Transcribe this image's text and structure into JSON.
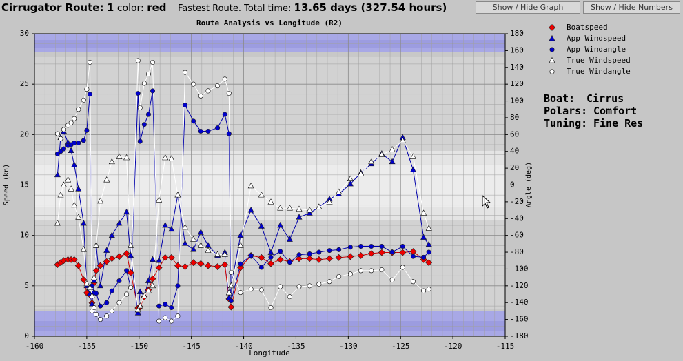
{
  "header": {
    "route_label": "Cirrugator Route:",
    "route_number": "1",
    "color_label": "color:",
    "color_value": "red",
    "time_label": "Fastest Route. Total time:",
    "time_value": "13.65 days (327.54 hours)"
  },
  "buttons": [
    "Show / Hide Graph",
    "Show / Hide Numbers"
  ],
  "info": [
    {
      "label": "Boat:",
      "value": "Cirrus"
    },
    {
      "label": "Polars:",
      "value": "Comfort"
    },
    {
      "label": "Tuning:",
      "value": "Fine Res"
    }
  ],
  "chart_data": {
    "type": "line",
    "title": "Route Analysis vs Longitude (R2)",
    "xlabel": "Longitude",
    "ylabel": "Speed (kn)",
    "y2label": "Angle (deg)",
    "xlim": [
      -160,
      -115
    ],
    "xticks": [
      -160,
      -155,
      -150,
      -145,
      -140,
      -135,
      -130,
      -125,
      -120,
      -115
    ],
    "ylim": [
      0,
      30
    ],
    "yticks": [
      0,
      5,
      10,
      15,
      20,
      25,
      30
    ],
    "y2lim": [
      -180,
      180
    ],
    "y2ticks": [
      -180,
      -160,
      -140,
      -120,
      -100,
      -80,
      -60,
      -40,
      -20,
      0,
      20,
      40,
      60,
      80,
      100,
      120,
      140,
      160,
      180
    ],
    "grid": true,
    "legend": "upper right",
    "x": [
      -157.8,
      -157.5,
      -157.2,
      -156.8,
      -156.5,
      -156.2,
      -155.8,
      -155.3,
      -155.0,
      -154.7,
      -154.5,
      -154.3,
      -154.1,
      -153.7,
      -153.1,
      -152.6,
      -151.9,
      -151.2,
      -150.8,
      -150.1,
      -149.9,
      -149.5,
      -149.1,
      -148.7,
      -148.1,
      -147.5,
      -146.9,
      -146.3,
      -145.6,
      -144.8,
      -144.1,
      -143.4,
      -142.5,
      -141.8,
      -141.4,
      -141.2,
      -140.3,
      -139.3,
      -138.3,
      -137.4,
      -136.5,
      -135.6,
      -134.7,
      -133.7,
      -132.8,
      -131.8,
      -130.9,
      -129.8,
      -128.8,
      -127.8,
      -126.8,
      -125.8,
      -124.8,
      -123.8,
      -122.8,
      -122.3
    ],
    "series": [
      {
        "name": "Boatspeed",
        "color": "#ee0000",
        "line_color": "#cc0000",
        "marker": "diamond",
        "axis": "y",
        "values": [
          7.1,
          7.3,
          7.5,
          7.6,
          7.6,
          7.6,
          7.0,
          5.6,
          4.3,
          4.1,
          3.3,
          5.3,
          6.5,
          7.0,
          7.4,
          7.7,
          7.9,
          8.2,
          6.3,
          2.8,
          2.9,
          3.9,
          4.6,
          5.7,
          6.8,
          7.8,
          7.8,
          7.0,
          6.9,
          7.3,
          7.2,
          7.0,
          6.9,
          7.1,
          3.7,
          2.9,
          6.8,
          8.0,
          7.8,
          7.2,
          7.6,
          7.4,
          7.7,
          7.7,
          7.6,
          7.7,
          7.8,
          7.9,
          8.0,
          8.2,
          8.3,
          8.3,
          8.3,
          8.4,
          7.6,
          7.3
        ]
      },
      {
        "name": "App Windspeed",
        "color": "#0000cc",
        "line_color": "#0000aa",
        "marker": "triangle",
        "axis": "y",
        "values": [
          16.0,
          19.7,
          20.3,
          19.2,
          18.4,
          17.0,
          14.6,
          11.2,
          5.0,
          4.2,
          3.2,
          5.5,
          9.0,
          5.0,
          8.5,
          10.0,
          11.2,
          12.3,
          8.0,
          2.3,
          4.4,
          4.0,
          5.5,
          7.6,
          7.5,
          11.0,
          10.6,
          14.0,
          9.2,
          8.6,
          10.3,
          9.0,
          8.0,
          8.3,
          3.8,
          5.0,
          10.0,
          12.5,
          10.9,
          8.3,
          11.0,
          9.6,
          11.8,
          12.2,
          12.8,
          13.6,
          14.1,
          15.1,
          16.2,
          17.1,
          18.1,
          17.3,
          19.7,
          16.5,
          9.8,
          9.1
        ]
      },
      {
        "name": "App Windangle",
        "color": "#0000cc",
        "line_color": "#0000aa",
        "marker": "circle",
        "axis": "y2",
        "values": [
          37,
          40,
          43,
          47,
          48,
          50,
          50,
          53,
          65,
          108,
          -120,
          -128,
          -129,
          -144,
          -140,
          -126,
          -114,
          -102,
          -122,
          109,
          52,
          72,
          84,
          112,
          -144,
          -142,
          -146,
          -120,
          95,
          76,
          64,
          64,
          68,
          84,
          61,
          -138,
          -94,
          -84,
          -98,
          -86,
          -79,
          -92,
          -83,
          -82,
          -80,
          -78,
          -77,
          -74,
          -73,
          -73,
          -73,
          -80,
          -73,
          -85,
          -86,
          -80
        ]
      },
      {
        "name": "True Windspeed",
        "color": "#ffffff",
        "line_color": "#ffffff",
        "marker": "triangle",
        "axis": "y",
        "values": [
          11.2,
          14.0,
          15.0,
          15.5,
          14.6,
          13.0,
          11.8,
          8.6,
          5.2,
          4.8,
          4.0,
          5.8,
          9.0,
          13.4,
          15.5,
          17.3,
          17.8,
          17.7,
          9.0,
          2.6,
          3.0,
          4.0,
          4.5,
          5.0,
          13.5,
          17.7,
          17.6,
          14.0,
          10.8,
          9.6,
          9.0,
          8.5,
          8.1,
          8.1,
          4.3,
          5.0,
          9.0,
          14.9,
          14.0,
          13.3,
          12.7,
          12.7,
          12.6,
          12.5,
          12.8,
          13.3,
          14.3,
          15.6,
          16.1,
          17.3,
          18.0,
          18.5,
          19.4,
          17.8,
          12.2,
          10.7
        ]
      },
      {
        "name": "True Windangle",
        "color": "#ffffff",
        "line_color": "#ffffff",
        "marker": "circle",
        "axis": "y2",
        "values": [
          61,
          55,
          66,
          71,
          74,
          79,
          90,
          101,
          114,
          146,
          -150,
          -146,
          -154,
          -160,
          -156,
          -150,
          -140,
          -130,
          -122,
          148,
          92,
          121,
          132,
          146,
          -162,
          -158,
          -162,
          -156,
          134,
          120,
          106,
          112,
          118,
          126,
          109,
          -104,
          -128,
          -124,
          -125,
          -146,
          -121,
          -133,
          -121,
          -120,
          -118,
          -115,
          -109,
          -106,
          -102,
          -102,
          -101,
          -113,
          -98,
          -115,
          -126,
          -124
        ]
      }
    ]
  }
}
